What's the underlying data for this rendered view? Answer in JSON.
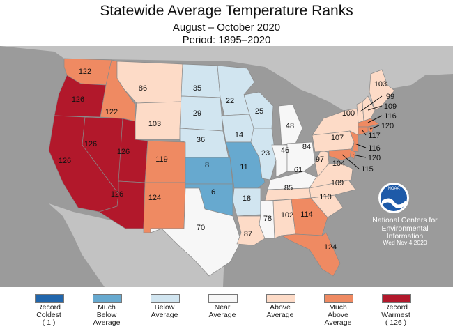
{
  "title": "Statewide Average Temperature Ranks",
  "subtitle1": "August – October 2020",
  "subtitle2": "Period: 1895–2020",
  "colors": {
    "ocean": "#9b9b9b",
    "land_other": "#c2c2c2",
    "record_coldest": "#2166ac",
    "much_below": "#67a9cf",
    "below": "#d1e5f0",
    "near": "#f7f7f7",
    "above": "#fddbc7",
    "much_above": "#ef8a62",
    "record_warmest": "#b2182b"
  },
  "legend": [
    {
      "key": "record_coldest",
      "label": "Record\nColdest\n( 1 )"
    },
    {
      "key": "much_below",
      "label": "Much\nBelow\nAverage"
    },
    {
      "key": "below",
      "label": "Below\nAverage"
    },
    {
      "key": "near",
      "label": "Near\nAverage"
    },
    {
      "key": "above",
      "label": "Above\nAverage"
    },
    {
      "key": "much_above",
      "label": "Much\nAbove\nAverage"
    },
    {
      "key": "record_warmest",
      "label": "Record\nWarmest\n( 126 )"
    }
  ],
  "states": [
    {
      "abbr": "WA",
      "rank": "122",
      "category": "much_above"
    },
    {
      "abbr": "OR",
      "rank": "126",
      "category": "record_warmest"
    },
    {
      "abbr": "CA",
      "rank": "126",
      "category": "record_warmest"
    },
    {
      "abbr": "NV",
      "rank": "126",
      "category": "record_warmest"
    },
    {
      "abbr": "ID",
      "rank": "122",
      "category": "much_above"
    },
    {
      "abbr": "MT",
      "rank": "86",
      "category": "above"
    },
    {
      "abbr": "WY",
      "rank": "103",
      "category": "above"
    },
    {
      "abbr": "UT",
      "rank": "126",
      "category": "record_warmest"
    },
    {
      "abbr": "AZ",
      "rank": "126",
      "category": "record_warmest"
    },
    {
      "abbr": "CO",
      "rank": "119",
      "category": "much_above"
    },
    {
      "abbr": "NM",
      "rank": "124",
      "category": "much_above"
    },
    {
      "abbr": "ND",
      "rank": "35",
      "category": "below"
    },
    {
      "abbr": "SD",
      "rank": "29",
      "category": "below"
    },
    {
      "abbr": "NE",
      "rank": "36",
      "category": "below"
    },
    {
      "abbr": "KS",
      "rank": "8",
      "category": "much_below"
    },
    {
      "abbr": "OK",
      "rank": "6",
      "category": "much_below"
    },
    {
      "abbr": "TX",
      "rank": "70",
      "category": "near"
    },
    {
      "abbr": "MN",
      "rank": "22",
      "category": "below"
    },
    {
      "abbr": "IA",
      "rank": "14",
      "category": "below"
    },
    {
      "abbr": "MO",
      "rank": "11",
      "category": "much_below"
    },
    {
      "abbr": "AR",
      "rank": "18",
      "category": "below"
    },
    {
      "abbr": "LA",
      "rank": "87",
      "category": "above"
    },
    {
      "abbr": "WI",
      "rank": "25",
      "category": "below"
    },
    {
      "abbr": "IL",
      "rank": "23",
      "category": "below"
    },
    {
      "abbr": "MI",
      "rank": "48",
      "category": "near"
    },
    {
      "abbr": "IN",
      "rank": "46",
      "category": "near"
    },
    {
      "abbr": "OH",
      "rank": "84",
      "category": "near"
    },
    {
      "abbr": "KY",
      "rank": "61",
      "category": "near"
    },
    {
      "abbr": "TN",
      "rank": "85",
      "category": "above"
    },
    {
      "abbr": "MS",
      "rank": "78",
      "category": "near"
    },
    {
      "abbr": "AL",
      "rank": "102",
      "category": "above"
    },
    {
      "abbr": "GA",
      "rank": "114",
      "category": "much_above"
    },
    {
      "abbr": "FL",
      "rank": "124",
      "category": "much_above"
    },
    {
      "abbr": "SC",
      "rank": "110",
      "category": "above"
    },
    {
      "abbr": "NC",
      "rank": "109",
      "category": "above"
    },
    {
      "abbr": "VA",
      "rank": "104",
      "category": "above"
    },
    {
      "abbr": "WV",
      "rank": "97",
      "category": "above"
    },
    {
      "abbr": "PA",
      "rank": "107",
      "category": "above"
    },
    {
      "abbr": "NY",
      "rank": "100",
      "category": "above"
    },
    {
      "abbr": "ME",
      "rank": "103",
      "category": "above"
    },
    {
      "abbr": "VT",
      "rank": "99",
      "category": "above"
    },
    {
      "abbr": "NH",
      "rank": "109",
      "category": "above"
    },
    {
      "abbr": "MA",
      "rank": "116",
      "category": "much_above"
    },
    {
      "abbr": "RI",
      "rank": "120",
      "category": "much_above"
    },
    {
      "abbr": "CT",
      "rank": "117",
      "category": "much_above"
    },
    {
      "abbr": "NJ",
      "rank": "116",
      "category": "much_above"
    },
    {
      "abbr": "DE",
      "rank": "120",
      "category": "much_above"
    },
    {
      "abbr": "MD",
      "rank": "115",
      "category": "much_above"
    }
  ],
  "noaa": {
    "logo_text": "NOAA",
    "org_line1": "National Centers for",
    "org_line2": "Environmental",
    "org_line3": "Information",
    "date": "Wed Nov  4 2020"
  }
}
